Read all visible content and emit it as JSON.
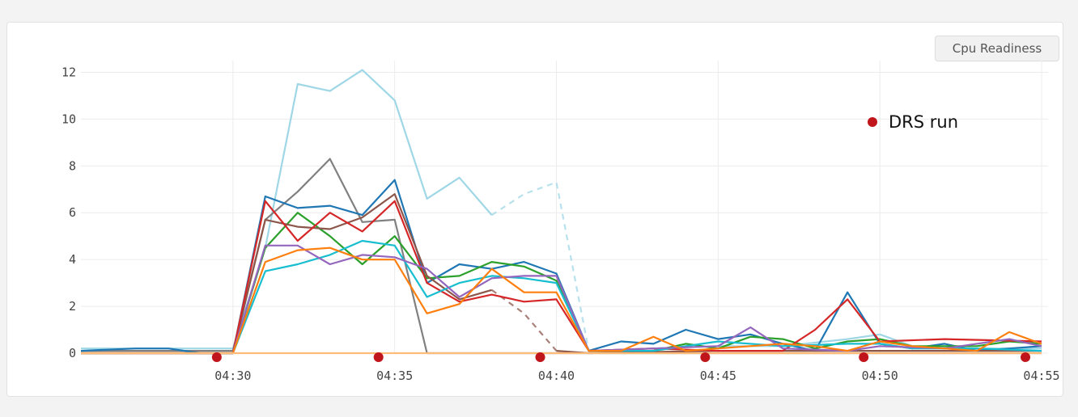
{
  "panel": {
    "badge_label": "Cpu Readiness"
  },
  "chart_data": {
    "type": "line",
    "title": "",
    "xlabel": "",
    "ylabel": "",
    "x_ticks": [
      "04:30",
      "04:35",
      "04:40",
      "04:45",
      "04:50",
      "04:55"
    ],
    "xlim": [
      "04:25.3",
      "04:55.2"
    ],
    "ylim": [
      0,
      12.5
    ],
    "y_ticks": [
      0,
      2,
      4,
      6,
      8,
      10,
      12
    ],
    "grid": true,
    "annotation": {
      "label": "DRS run",
      "marker_color": "#c0161b"
    },
    "drs_run_times": [
      "04:29.5",
      "04:34.5",
      "04:39.5",
      "04:44.6",
      "04:49.5",
      "04:54.5"
    ],
    "series": [
      {
        "color": "#9fd7e6",
        "dashed_segment": [
          38,
          41
        ],
        "points": [
          [
            25.3,
            0.2
          ],
          [
            28,
            0.2
          ],
          [
            30,
            0.2
          ],
          [
            31,
            4.5
          ],
          [
            32,
            11.5
          ],
          [
            33,
            11.2
          ],
          [
            34,
            12.1
          ],
          [
            35,
            10.8
          ],
          [
            36,
            6.6
          ],
          [
            37,
            7.5
          ],
          [
            38,
            5.9
          ],
          [
            39,
            6.8
          ],
          [
            40,
            7.3
          ],
          [
            41,
            0.1
          ],
          [
            43,
            0.2
          ],
          [
            45,
            0.3
          ],
          [
            47,
            0.3
          ],
          [
            49,
            0.6
          ],
          [
            50,
            0.8
          ],
          [
            51,
            0.3
          ],
          [
            53,
            0.2
          ],
          [
            55,
            0.2
          ]
        ]
      },
      {
        "color": "#808080",
        "points": [
          [
            25.3,
            0.1
          ],
          [
            28,
            0.1
          ],
          [
            30,
            0.1
          ],
          [
            31,
            5.7
          ],
          [
            32,
            6.9
          ],
          [
            33,
            8.3
          ],
          [
            34,
            5.6
          ],
          [
            35,
            5.7
          ],
          [
            36,
            0.0
          ],
          [
            40,
            0.0
          ],
          [
            45,
            0.0
          ],
          [
            50,
            0.0
          ],
          [
            55,
            0.0
          ]
        ]
      },
      {
        "color": "#1f77b4",
        "points": [
          [
            25.3,
            0.1
          ],
          [
            27,
            0.2
          ],
          [
            28,
            0.2
          ],
          [
            29,
            0.0
          ],
          [
            30,
            0.0
          ],
          [
            31,
            6.7
          ],
          [
            32,
            6.2
          ],
          [
            33,
            6.3
          ],
          [
            34,
            5.9
          ],
          [
            35,
            7.4
          ],
          [
            36,
            3.0
          ],
          [
            37,
            3.8
          ],
          [
            38,
            3.6
          ],
          [
            39,
            3.9
          ],
          [
            40,
            3.4
          ],
          [
            41,
            0.1
          ],
          [
            42,
            0.5
          ],
          [
            43,
            0.4
          ],
          [
            44,
            1.0
          ],
          [
            45,
            0.6
          ],
          [
            46,
            0.8
          ],
          [
            47,
            0.4
          ],
          [
            48,
            0.1
          ],
          [
            49,
            2.6
          ],
          [
            50,
            0.4
          ],
          [
            51,
            0.2
          ],
          [
            52,
            0.4
          ],
          [
            53,
            0.1
          ],
          [
            54,
            0.2
          ],
          [
            55,
            0.3
          ]
        ]
      },
      {
        "color": "#2ca02c",
        "points": [
          [
            25.3,
            0.0
          ],
          [
            30,
            0.0
          ],
          [
            31,
            4.5
          ],
          [
            32,
            6.0
          ],
          [
            33,
            5.0
          ],
          [
            34,
            3.8
          ],
          [
            35,
            5.0
          ],
          [
            36,
            3.2
          ],
          [
            37,
            3.3
          ],
          [
            38,
            3.9
          ],
          [
            39,
            3.7
          ],
          [
            40,
            3.1
          ],
          [
            41,
            0.1
          ],
          [
            43,
            0.1
          ],
          [
            44,
            0.4
          ],
          [
            45,
            0.2
          ],
          [
            46,
            0.7
          ],
          [
            47,
            0.6
          ],
          [
            48,
            0.2
          ],
          [
            49,
            0.5
          ],
          [
            50,
            0.6
          ],
          [
            51,
            0.3
          ],
          [
            53,
            0.3
          ],
          [
            54,
            0.5
          ],
          [
            55,
            0.4
          ]
        ]
      },
      {
        "color": "#8c564b",
        "dashed_segment": [
          38,
          40
        ],
        "points": [
          [
            25.3,
            0.0
          ],
          [
            30,
            0.0
          ],
          [
            31,
            5.7
          ],
          [
            32,
            5.4
          ],
          [
            33,
            5.3
          ],
          [
            34,
            5.8
          ],
          [
            35,
            6.8
          ],
          [
            36,
            3.3
          ],
          [
            37,
            2.3
          ],
          [
            38,
            2.7
          ],
          [
            39,
            1.7
          ],
          [
            40,
            0.1
          ],
          [
            41,
            0.0
          ],
          [
            45,
            0.1
          ],
          [
            50,
            0.1
          ],
          [
            55,
            0.1
          ]
        ]
      },
      {
        "color": "#d62728",
        "points": [
          [
            25.3,
            0.0
          ],
          [
            30,
            0.0
          ],
          [
            31,
            6.5
          ],
          [
            32,
            4.8
          ],
          [
            33,
            6.0
          ],
          [
            34,
            5.2
          ],
          [
            35,
            6.5
          ],
          [
            36,
            3.0
          ],
          [
            37,
            2.2
          ],
          [
            38,
            2.5
          ],
          [
            39,
            2.2
          ],
          [
            40,
            2.3
          ],
          [
            41,
            0.1
          ],
          [
            43,
            0.2
          ],
          [
            45,
            0.1
          ],
          [
            47,
            0.1
          ],
          [
            48,
            1.0
          ],
          [
            49,
            2.3
          ],
          [
            50,
            0.5
          ],
          [
            52,
            0.6
          ],
          [
            55,
            0.5
          ]
        ]
      },
      {
        "color": "#17becf",
        "points": [
          [
            25.3,
            0.0
          ],
          [
            30,
            0.0
          ],
          [
            31,
            3.5
          ],
          [
            32,
            3.8
          ],
          [
            33,
            4.2
          ],
          [
            34,
            4.8
          ],
          [
            35,
            4.6
          ],
          [
            36,
            2.4
          ],
          [
            37,
            3.0
          ],
          [
            38,
            3.3
          ],
          [
            39,
            3.2
          ],
          [
            40,
            3.0
          ],
          [
            41,
            0.1
          ],
          [
            43,
            0.1
          ],
          [
            45,
            0.5
          ],
          [
            47,
            0.3
          ],
          [
            49,
            0.4
          ],
          [
            50,
            0.4
          ],
          [
            51,
            0.2
          ],
          [
            53,
            0.2
          ],
          [
            55,
            0.1
          ]
        ]
      },
      {
        "color": "#9467bd",
        "points": [
          [
            25.3,
            0.0
          ],
          [
            30,
            0.0
          ],
          [
            31,
            4.6
          ],
          [
            32,
            4.6
          ],
          [
            33,
            3.8
          ],
          [
            34,
            4.2
          ],
          [
            35,
            4.1
          ],
          [
            36,
            3.6
          ],
          [
            37,
            2.4
          ],
          [
            38,
            3.2
          ],
          [
            39,
            3.3
          ],
          [
            40,
            3.3
          ],
          [
            41,
            0.1
          ],
          [
            43,
            0.2
          ],
          [
            45,
            0.3
          ],
          [
            46,
            1.1
          ],
          [
            47,
            0.2
          ],
          [
            49,
            0.1
          ],
          [
            50,
            0.3
          ],
          [
            52,
            0.2
          ],
          [
            54,
            0.6
          ],
          [
            55,
            0.3
          ]
        ]
      },
      {
        "color": "#ff7f0e",
        "points": [
          [
            25.3,
            0.0
          ],
          [
            30,
            0.0
          ],
          [
            31,
            3.9
          ],
          [
            32,
            4.4
          ],
          [
            33,
            4.5
          ],
          [
            34,
            4.0
          ],
          [
            35,
            4.0
          ],
          [
            36,
            1.7
          ],
          [
            37,
            2.1
          ],
          [
            38,
            3.6
          ],
          [
            39,
            2.6
          ],
          [
            40,
            2.6
          ],
          [
            41,
            0.1
          ],
          [
            42,
            0.1
          ],
          [
            43,
            0.7
          ],
          [
            44,
            0.1
          ],
          [
            45,
            0.2
          ],
          [
            47,
            0.4
          ],
          [
            48,
            0.3
          ],
          [
            49,
            0.1
          ],
          [
            50,
            0.5
          ],
          [
            51,
            0.3
          ],
          [
            53,
            0.1
          ],
          [
            54,
            0.9
          ],
          [
            55,
            0.4
          ]
        ]
      },
      {
        "color": "#ffbb78",
        "points": [
          [
            25.3,
            0.0
          ],
          [
            30,
            0.0
          ],
          [
            35,
            0.0
          ],
          [
            40,
            0.0
          ],
          [
            45,
            0.0
          ],
          [
            50,
            0.0
          ],
          [
            55,
            0.0
          ]
        ]
      }
    ]
  }
}
